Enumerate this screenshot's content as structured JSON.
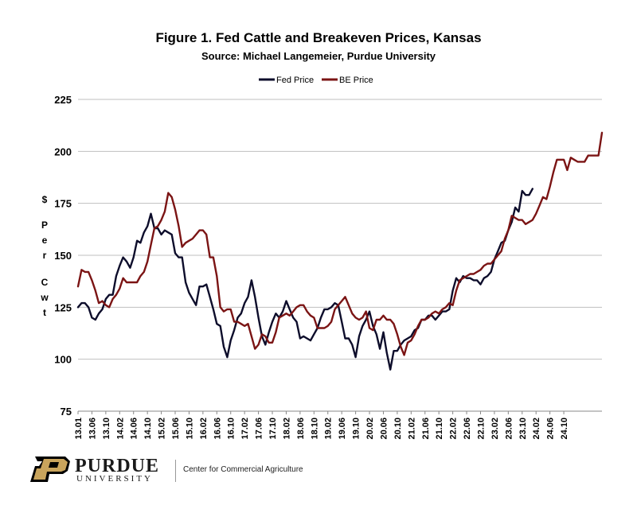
{
  "chart_data": {
    "type": "line",
    "title": "Figure 1. Fed Cattle and Breakeven Prices, Kansas",
    "subtitle": "Source:  Michael Langemeier, Purdue University",
    "ylabel_chars": [
      "$",
      "P",
      "e",
      "r",
      "C",
      "w",
      "t"
    ],
    "ylim": [
      75,
      225
    ],
    "yticks": [
      75,
      100,
      125,
      150,
      175,
      200,
      225
    ],
    "grid": "horizontal",
    "legend_position": "top-center",
    "x_start": "2013-01",
    "x_tick_labels": [
      "13.01",
      "13.06",
      "13.10",
      "14.02",
      "14.06",
      "14.10",
      "15.02",
      "15.06",
      "15.10",
      "16.02",
      "16.06",
      "16.10",
      "17.02",
      "17.06",
      "17.10",
      "18.02",
      "18.06",
      "18.10",
      "19.02",
      "19.06",
      "19.10",
      "20.02",
      "20.06",
      "20.10",
      "21.02",
      "21.06",
      "21.10",
      "22.02",
      "22.06",
      "22.10",
      "23.02",
      "23.06",
      "23.10",
      "24.02",
      "24.06",
      "24.10"
    ],
    "series": [
      {
        "name": "Fed Price",
        "color": "#0d0d2b",
        "values": [
          125,
          127,
          127,
          125,
          120,
          119,
          122,
          124,
          129,
          131,
          131,
          140,
          145,
          149,
          147,
          144,
          149,
          157,
          156,
          161,
          164,
          170,
          163,
          163,
          160,
          162,
          161,
          160,
          151,
          149,
          149,
          137,
          132,
          129,
          126,
          135,
          135,
          136,
          130,
          124,
          117,
          116,
          106,
          101,
          109,
          114,
          120,
          122,
          127,
          130,
          138,
          130,
          120,
          111,
          107,
          113,
          118,
          122,
          120,
          123,
          128,
          124,
          120,
          118,
          110,
          111,
          110,
          109,
          112,
          115,
          120,
          124,
          124,
          125,
          127,
          126,
          118,
          110,
          110,
          107,
          101,
          111,
          116,
          119,
          123,
          116,
          112,
          105,
          113,
          103,
          95,
          104,
          104,
          107,
          109,
          110,
          111,
          114,
          115,
          119,
          119,
          121,
          121,
          119,
          121,
          123,
          123,
          124,
          133,
          139,
          137,
          140,
          139,
          139,
          138,
          138,
          136,
          139,
          140,
          142,
          148,
          152,
          156,
          157,
          162,
          166,
          173,
          171,
          181,
          179,
          179,
          182
        ]
      },
      {
        "name": "BE Price",
        "color": "#7b1414",
        "values": [
          135,
          143,
          142,
          142,
          138,
          133,
          127,
          128,
          126,
          125,
          129,
          131,
          134,
          139,
          137,
          137,
          137,
          137,
          140,
          142,
          147,
          155,
          163,
          164,
          167,
          171,
          180,
          178,
          172,
          164,
          154,
          156,
          157,
          158,
          160,
          162,
          162,
          160,
          149,
          149,
          140,
          125,
          123,
          124,
          124,
          118,
          118,
          117,
          116,
          117,
          111,
          105,
          107,
          112,
          111,
          108,
          108,
          113,
          120,
          121,
          122,
          121,
          123,
          125,
          126,
          126,
          123,
          121,
          120,
          115,
          115,
          115,
          116,
          118,
          124,
          126,
          128,
          130,
          126,
          122,
          120,
          119,
          120,
          123,
          115,
          114,
          119,
          119,
          121,
          119,
          119,
          117,
          112,
          106,
          102,
          108,
          109,
          112,
          116,
          119,
          119,
          120,
          122,
          123,
          122,
          124,
          125,
          127,
          126,
          133,
          138,
          139,
          140,
          141,
          141,
          142,
          143,
          145,
          146,
          146,
          148,
          150,
          152,
          158,
          162,
          169,
          168,
          167,
          167,
          165,
          166,
          167,
          170,
          174,
          178,
          177,
          183,
          190,
          196,
          196,
          196,
          191,
          197,
          196,
          195,
          195,
          195,
          198,
          198,
          198,
          198,
          209
        ]
      }
    ]
  },
  "footer": {
    "logo_word": "PURDUE",
    "logo_sub": "UNIVERSITY",
    "center_label": "Center for Commercial Agriculture"
  }
}
